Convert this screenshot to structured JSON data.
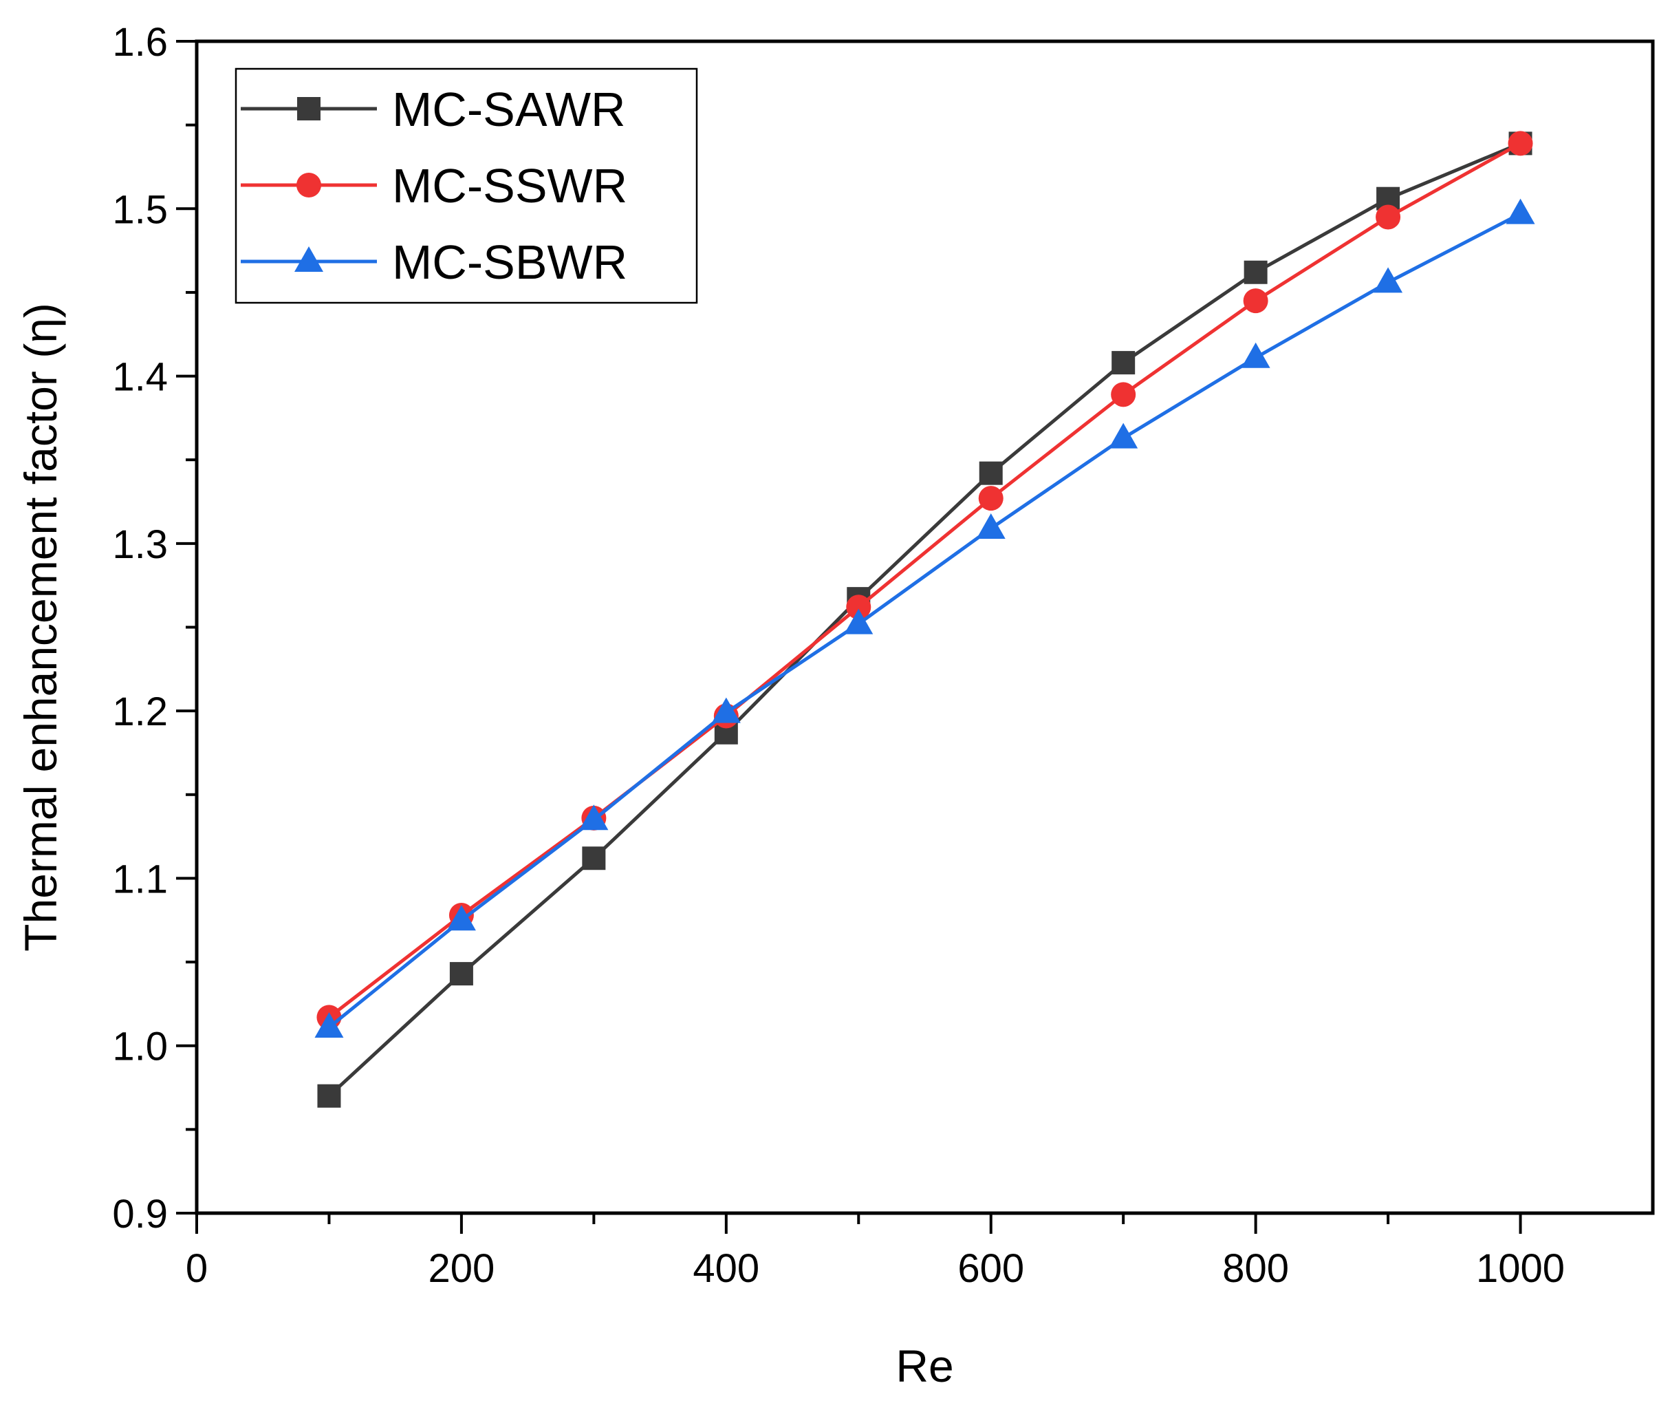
{
  "chart_data": {
    "type": "line",
    "title": "",
    "xlabel": "Re",
    "ylabel": "Thermal enhancement factor (η)",
    "xlim": [
      0,
      1100
    ],
    "ylim": [
      0.9,
      1.6
    ],
    "x_ticks": [
      0,
      200,
      400,
      600,
      800,
      1000
    ],
    "x_tick_labels": [
      "0",
      "200",
      "400",
      "600",
      "800",
      "1000"
    ],
    "y_ticks": [
      0.9,
      1.0,
      1.1,
      1.2,
      1.3,
      1.4,
      1.5,
      1.6
    ],
    "y_tick_labels": [
      "0.9",
      "1.0",
      "1.1",
      "1.2",
      "1.3",
      "1.4",
      "1.5",
      "1.6"
    ],
    "grid": false,
    "legend_position": "top-left",
    "x": [
      100,
      200,
      300,
      400,
      500,
      600,
      700,
      800,
      900,
      1000
    ],
    "series": [
      {
        "name": "MC-SAWR",
        "color": "#3a3a3a",
        "marker": "square",
        "values": [
          0.97,
          1.043,
          1.112,
          1.187,
          1.267,
          1.342,
          1.408,
          1.462,
          1.506,
          1.539
        ]
      },
      {
        "name": "MC-SSWR",
        "color": "#ef3232",
        "marker": "circle",
        "values": [
          1.017,
          1.078,
          1.136,
          1.197,
          1.262,
          1.327,
          1.389,
          1.445,
          1.495,
          1.539
        ]
      },
      {
        "name": "MC-SBWR",
        "color": "#1f6fe5",
        "marker": "triangle",
        "values": [
          1.011,
          1.075,
          1.135,
          1.199,
          1.252,
          1.309,
          1.363,
          1.411,
          1.456,
          1.497
        ]
      }
    ]
  }
}
